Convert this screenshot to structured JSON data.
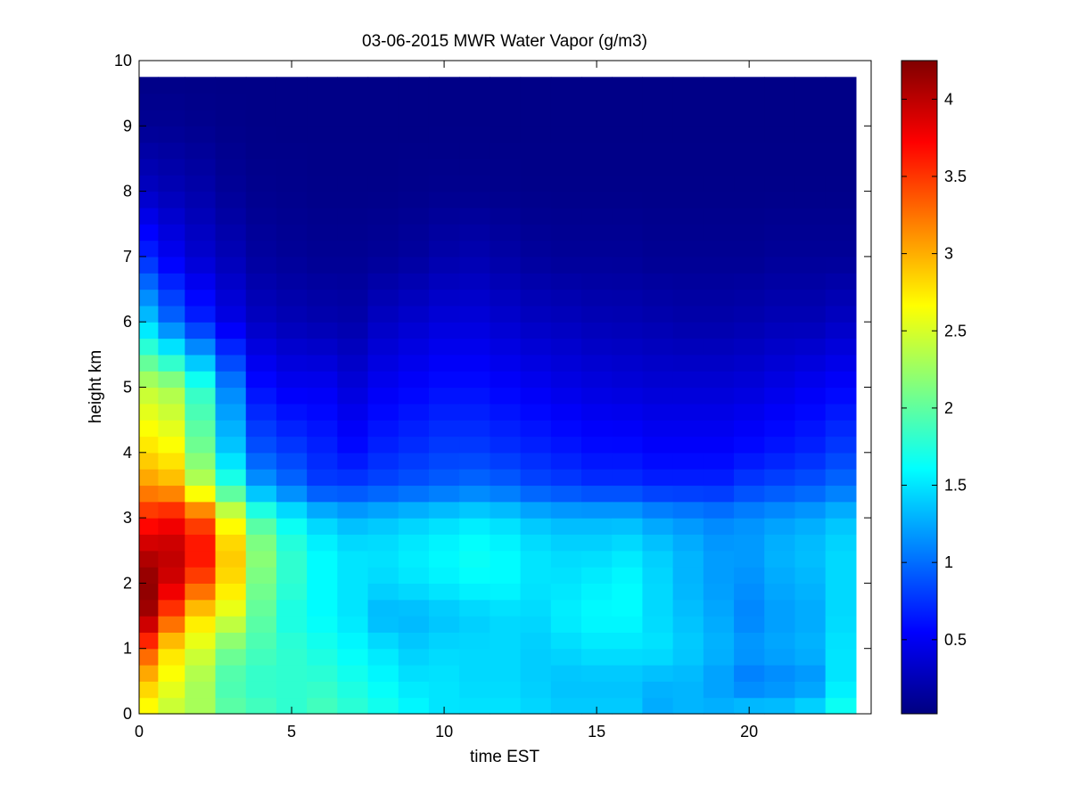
{
  "chart_data": {
    "type": "heatmap",
    "title": "03-06-2015 MWR Water Vapor (g/m3)",
    "xlabel": "time EST",
    "ylabel": "height km",
    "xlim": [
      0,
      24
    ],
    "ylim": [
      0,
      10
    ],
    "x_ticks": [
      "0",
      "5",
      "10",
      "15",
      "20"
    ],
    "x_tick_values": [
      0,
      5,
      10,
      15,
      20
    ],
    "y_ticks": [
      "0",
      "1",
      "2",
      "3",
      "4",
      "5",
      "6",
      "7",
      "8",
      "9",
      "10"
    ],
    "y_tick_values": [
      0,
      1,
      2,
      3,
      4,
      5,
      6,
      7,
      8,
      9,
      10
    ],
    "colorbar": {
      "label": "",
      "range": [
        0.02,
        4.25
      ],
      "ticks": [
        "0.5",
        "1",
        "1.5",
        "2",
        "2.5",
        "3",
        "3.5",
        "4"
      ],
      "tick_values": [
        0.5,
        1,
        1.5,
        2,
        2.5,
        3,
        3.5,
        4
      ],
      "colormap": "jet"
    },
    "grid": false,
    "x_centers": [
      0.25,
      1,
      2,
      3,
      4,
      5,
      6,
      7,
      8,
      9,
      10,
      11,
      12,
      13,
      14,
      15,
      16,
      17,
      18,
      19,
      20,
      21,
      22,
      23
    ],
    "y_profile_heights_km": [
      0,
      0.5,
      1,
      1.5,
      2,
      2.5,
      3,
      3.5,
      4,
      5,
      6,
      7,
      8,
      9,
      9.75
    ],
    "profiles": [
      [
        2.6,
        2.9,
        3.4,
        4.1,
        4.2,
        4.0,
        3.6,
        3.1,
        2.8,
        2.4,
        1.4,
        0.7,
        0.3,
        0.1,
        0.05
      ],
      [
        2.4,
        2.6,
        2.8,
        3.4,
        3.9,
        4.0,
        3.7,
        3.0,
        2.7,
        2.3,
        1.0,
        0.5,
        0.25,
        0.1,
        0.05
      ],
      [
        2.3,
        2.3,
        2.5,
        2.8,
        3.4,
        3.7,
        3.4,
        2.4,
        2.1,
        1.8,
        0.7,
        0.35,
        0.2,
        0.08,
        0.05
      ],
      [
        2.0,
        1.9,
        2.1,
        2.5,
        2.8,
        2.9,
        2.6,
        1.8,
        1.4,
        1.1,
        0.45,
        0.25,
        0.12,
        0.06,
        0.05
      ],
      [
        1.9,
        1.8,
        1.9,
        2.0,
        2.1,
        2.2,
        1.9,
        1.2,
        0.9,
        0.6,
        0.3,
        0.15,
        0.08,
        0.05,
        0.05
      ],
      [
        1.8,
        1.8,
        1.8,
        1.7,
        1.8,
        1.8,
        1.6,
        1.0,
        0.8,
        0.5,
        0.25,
        0.12,
        0.07,
        0.05,
        0.05
      ],
      [
        1.9,
        1.8,
        1.7,
        1.6,
        1.6,
        1.6,
        1.4,
        0.8,
        0.7,
        0.5,
        0.22,
        0.1,
        0.06,
        0.05,
        0.05
      ],
      [
        1.8,
        1.7,
        1.6,
        1.5,
        1.5,
        1.5,
        1.3,
        0.8,
        0.6,
        0.4,
        0.2,
        0.1,
        0.06,
        0.05,
        0.05
      ],
      [
        1.7,
        1.6,
        1.5,
        1.3,
        1.45,
        1.5,
        1.35,
        0.85,
        0.7,
        0.5,
        0.3,
        0.12,
        0.06,
        0.05,
        0.05
      ],
      [
        1.6,
        1.5,
        1.4,
        1.3,
        1.5,
        1.55,
        1.4,
        0.9,
        0.75,
        0.55,
        0.35,
        0.15,
        0.07,
        0.05,
        0.05
      ],
      [
        1.5,
        1.5,
        1.45,
        1.35,
        1.55,
        1.6,
        1.45,
        0.95,
        0.8,
        0.6,
        0.4,
        0.2,
        0.08,
        0.05,
        0.05
      ],
      [
        1.5,
        1.45,
        1.45,
        1.4,
        1.6,
        1.65,
        1.5,
        1.0,
        0.8,
        0.6,
        0.4,
        0.22,
        0.08,
        0.05,
        0.05
      ],
      [
        1.5,
        1.45,
        1.45,
        1.45,
        1.6,
        1.6,
        1.45,
        0.95,
        0.75,
        0.55,
        0.35,
        0.18,
        0.07,
        0.05,
        0.05
      ],
      [
        1.45,
        1.4,
        1.4,
        1.45,
        1.5,
        1.5,
        1.35,
        0.85,
        0.7,
        0.5,
        0.3,
        0.14,
        0.06,
        0.05,
        0.05
      ],
      [
        1.4,
        1.35,
        1.45,
        1.55,
        1.5,
        1.45,
        1.3,
        0.8,
        0.65,
        0.45,
        0.28,
        0.12,
        0.06,
        0.05,
        0.05
      ],
      [
        1.4,
        1.35,
        1.5,
        1.6,
        1.55,
        1.45,
        1.3,
        0.75,
        0.6,
        0.42,
        0.25,
        0.12,
        0.06,
        0.05,
        0.05
      ],
      [
        1.4,
        1.35,
        1.5,
        1.6,
        1.6,
        1.5,
        1.3,
        0.75,
        0.6,
        0.4,
        0.24,
        0.12,
        0.06,
        0.05,
        0.05
      ],
      [
        1.25,
        1.3,
        1.5,
        1.45,
        1.45,
        1.4,
        1.2,
        0.7,
        0.55,
        0.38,
        0.22,
        0.1,
        0.06,
        0.05,
        0.05
      ],
      [
        1.3,
        1.3,
        1.4,
        1.35,
        1.3,
        1.3,
        1.15,
        0.7,
        0.55,
        0.38,
        0.2,
        0.1,
        0.06,
        0.05,
        0.05
      ],
      [
        1.3,
        1.2,
        1.3,
        1.25,
        1.2,
        1.2,
        1.1,
        0.7,
        0.55,
        0.38,
        0.2,
        0.1,
        0.06,
        0.05,
        0.05
      ],
      [
        1.4,
        1.05,
        1.2,
        1.1,
        1.15,
        1.2,
        1.15,
        0.8,
        0.6,
        0.4,
        0.22,
        0.1,
        0.06,
        0.05,
        0.05
      ],
      [
        1.4,
        1.1,
        1.25,
        1.2,
        1.25,
        1.3,
        1.2,
        0.85,
        0.65,
        0.45,
        0.25,
        0.12,
        0.06,
        0.05,
        0.05
      ],
      [
        1.5,
        1.15,
        1.3,
        1.25,
        1.3,
        1.35,
        1.25,
        0.9,
        0.7,
        0.5,
        0.25,
        0.12,
        0.06,
        0.05,
        0.05
      ],
      [
        1.7,
        1.5,
        1.5,
        1.45,
        1.45,
        1.45,
        1.35,
        1.0,
        0.8,
        0.55,
        0.3,
        0.12,
        0.06,
        0.05,
        0.05
      ]
    ]
  }
}
